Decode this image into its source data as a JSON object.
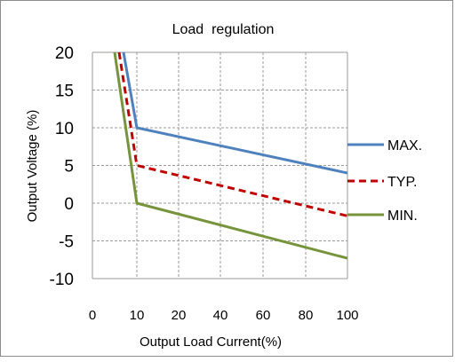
{
  "chart_data": {
    "type": "line",
    "title": "Load  regulation",
    "xlabel": "Output Load Current(%)",
    "ylabel": "Output Voltage (%)",
    "x_ticks": [
      "0",
      "10",
      "20",
      "40",
      "60",
      "80",
      "100"
    ],
    "y_ticks": [
      "20",
      "15",
      "10",
      "5",
      "0",
      "-5",
      "-10"
    ],
    "ylim": [
      -10,
      20
    ],
    "grid": true,
    "legend_position": "right",
    "series": [
      {
        "name": "MAX.",
        "color": "#4f81bd",
        "dash": "solid",
        "points": [
          [
            7,
            20
          ],
          [
            10,
            10
          ],
          [
            100,
            4
          ]
        ]
      },
      {
        "name": "TYP.",
        "color": "#c00000",
        "dash": "dashed",
        "points": [
          [
            6,
            20
          ],
          [
            10,
            5
          ],
          [
            100,
            -1.7
          ]
        ]
      },
      {
        "name": "MIN.",
        "color": "#77933c",
        "dash": "solid",
        "points": [
          [
            5,
            20
          ],
          [
            10,
            0
          ],
          [
            100,
            -7.3
          ]
        ]
      }
    ]
  }
}
